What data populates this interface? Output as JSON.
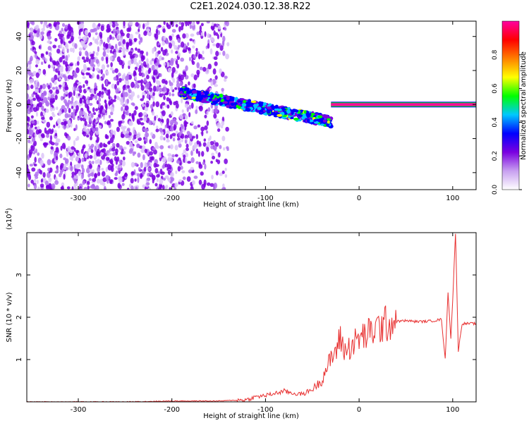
{
  "title": "C2E1.2024.030.12.38.R22",
  "chart_data": [
    {
      "type": "heatmap",
      "xlabel": "Height of straight line (km)",
      "ylabel": "Frequency (Hz)",
      "xlim": [
        -355,
        125
      ],
      "ylim": [
        -50,
        49
      ],
      "xticks": [
        -300,
        -200,
        -100,
        0,
        100
      ],
      "yticks": [
        -40,
        -20,
        0,
        20,
        40
      ],
      "colorbar": {
        "label": "Normalized spectral amplitude",
        "range": [
          0.0,
          1.0
        ],
        "ticks": [
          "0.0",
          "0.2",
          "0.4",
          "0.6",
          "0.8"
        ],
        "colors": [
          "#ffffff",
          "#c8a0f0",
          "#7a00e0",
          "#0000ff",
          "#00c8ff",
          "#00ff00",
          "#ffff00",
          "#ff8000",
          "#ff0000",
          "#ff00a0"
        ]
      },
      "regions": [
        {
          "name": "broadband noise",
          "x_range": [
            -355,
            -140
          ],
          "freq_range": [
            -50,
            49
          ],
          "amplitude": 0.1
        },
        {
          "name": "signal band",
          "x_range": [
            -190,
            -30
          ],
          "freq_center": [
            7,
            -10
          ],
          "amplitude": 0.3
        },
        {
          "name": "carrier",
          "x_range": [
            -30,
            125
          ],
          "freq": 0,
          "amplitude": 0.85
        }
      ]
    },
    {
      "type": "line",
      "xlabel": "Height of straight line (km)",
      "ylabel": "SNR (10 * v/v)",
      "scale_label": "(x10",
      "scale_exp": "4",
      "scale_close": ")",
      "xlim": [
        -355,
        125
      ],
      "ylim": [
        0,
        4
      ],
      "xticks": [
        -300,
        -200,
        -100,
        0,
        100
      ],
      "yticks": [
        1,
        2,
        3
      ],
      "line_color": "#e83030",
      "series": [
        {
          "x": [
            -355,
            -300,
            -250,
            -200,
            -150,
            -120,
            -110,
            -100,
            -90,
            -80,
            -70,
            -60,
            -50,
            -40,
            -35,
            -30,
            -25,
            -20,
            -15,
            -10,
            -5,
            0,
            10,
            20,
            30,
            40,
            50,
            60,
            70,
            80,
            88,
            92,
            95,
            98,
            100,
            103,
            106,
            110,
            115,
            125
          ],
          "y": [
            0.0,
            0.0,
            0.0,
            0.02,
            0.02,
            0.05,
            0.12,
            0.15,
            0.2,
            0.25,
            0.2,
            0.18,
            0.3,
            0.5,
            0.8,
            1.0,
            1.2,
            1.5,
            1.2,
            1.3,
            1.4,
            1.5,
            1.6,
            1.75,
            1.85,
            1.9,
            1.92,
            1.9,
            1.9,
            1.92,
            1.95,
            1.0,
            2.6,
            1.5,
            2.4,
            4.0,
            1.2,
            1.85,
            1.85,
            1.85
          ]
        }
      ]
    }
  ]
}
